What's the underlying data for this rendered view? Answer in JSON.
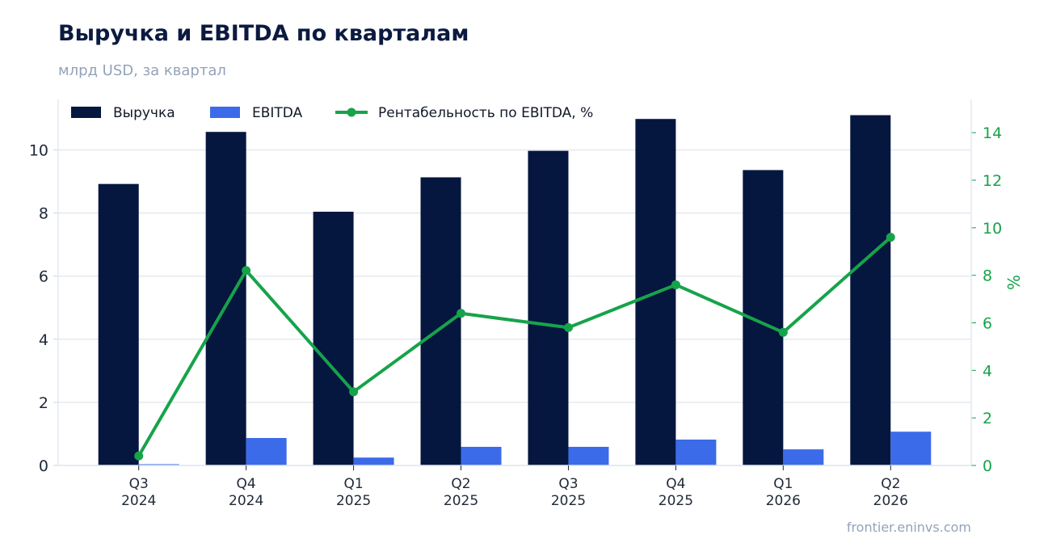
{
  "header": {
    "title": "Выручка и EBITDA по кварталам",
    "subtitle": "млрд USD, за квартал"
  },
  "footer": {
    "source": "frontier.eninvs.com"
  },
  "colors": {
    "revenue": "#05163f",
    "ebitda": "#3b6be8",
    "margin": "#16a34a",
    "grid": "#e5e9f0",
    "axis_text": "#1f2937"
  },
  "chart_data": {
    "type": "bar",
    "categories": [
      [
        "Q3",
        "2024"
      ],
      [
        "Q4",
        "2024"
      ],
      [
        "Q1",
        "2025"
      ],
      [
        "Q2",
        "2025"
      ],
      [
        "Q3",
        "2025"
      ],
      [
        "Q4",
        "2025"
      ],
      [
        "Q1",
        "2026"
      ],
      [
        "Q2",
        "2026"
      ]
    ],
    "series": [
      {
        "name": "Выручка",
        "type": "bar",
        "axis": "left",
        "values": [
          8.92,
          10.57,
          8.04,
          9.13,
          9.97,
          10.98,
          9.36,
          11.1
        ]
      },
      {
        "name": "EBITDA",
        "type": "bar",
        "axis": "left",
        "values": [
          0.04,
          0.87,
          0.25,
          0.59,
          0.59,
          0.82,
          0.51,
          1.07
        ]
      },
      {
        "name": "Рентабельность по EBITDA, %",
        "type": "line",
        "axis": "right",
        "values": [
          0.4,
          8.2,
          3.1,
          6.4,
          5.8,
          7.6,
          5.6,
          9.6
        ]
      }
    ],
    "y_left": {
      "min": 0,
      "max": 11.6,
      "ticks": [
        0,
        2,
        4,
        6,
        8,
        10
      ],
      "label": ""
    },
    "y_right": {
      "min": 0,
      "max": 15.4,
      "ticks": [
        0,
        2,
        4,
        6,
        8,
        10,
        12,
        14
      ],
      "label": "%"
    },
    "grid": true,
    "legend_position": "top-left"
  }
}
